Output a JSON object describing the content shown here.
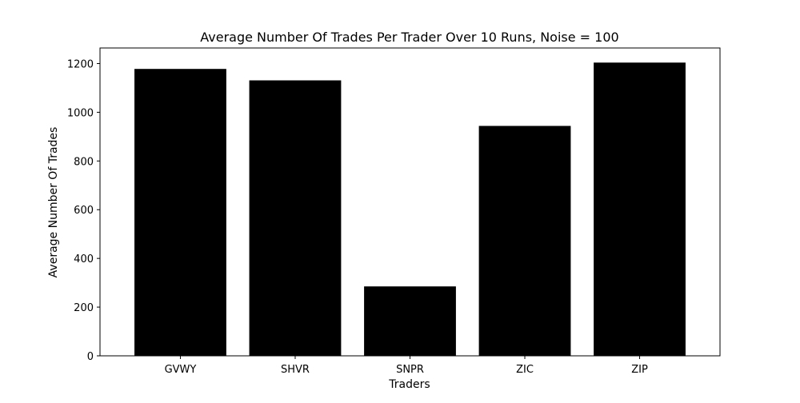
{
  "chart_data": {
    "type": "bar",
    "title": "Average Number Of Trades Per Trader Over 10 Runs, Noise = 100",
    "xlabel": "Traders",
    "ylabel": "Average Number Of Trades",
    "categories": [
      "GVWY",
      "SHVR",
      "SNPR",
      "ZIC",
      "ZIP"
    ],
    "values": [
      1178,
      1131,
      285,
      944,
      1204
    ],
    "ylim": [
      0,
      1264
    ],
    "yticks": [
      0,
      200,
      400,
      600,
      800,
      1000,
      1200
    ],
    "grid": false,
    "colors": {
      "bar": "#000000",
      "axes": "#000000",
      "background": "#ffffff"
    }
  }
}
